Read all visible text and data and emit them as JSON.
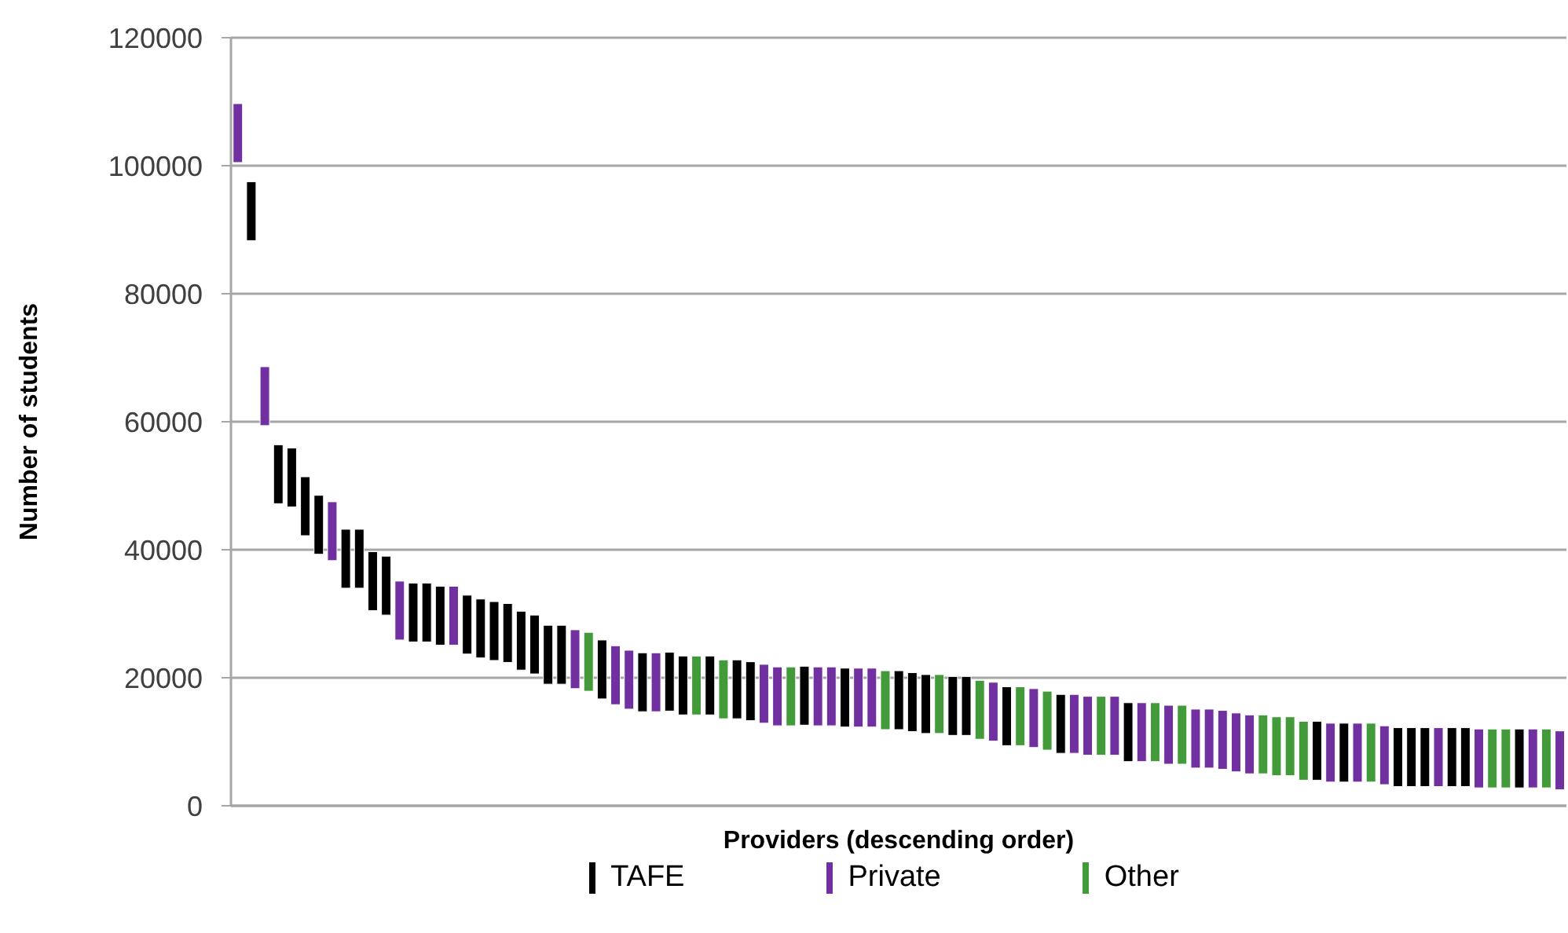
{
  "chart_data": {
    "type": "bar",
    "xlabel": "Providers (descending order)",
    "ylabel": "Number of students",
    "categories": [
      null,
      null,
      null,
      null,
      null,
      null,
      null,
      null,
      null,
      null,
      null,
      null,
      null,
      null,
      null,
      null,
      null,
      null,
      null,
      null,
      null,
      null,
      null,
      null,
      null,
      null,
      null,
      null,
      null,
      null,
      null,
      null,
      null,
      null,
      null,
      null,
      null,
      null,
      null,
      null,
      null,
      null,
      null,
      null,
      null,
      null,
      null,
      null,
      null,
      null,
      null,
      null,
      null,
      null,
      null,
      null,
      null,
      null,
      null,
      null,
      null,
      null,
      null,
      null,
      null,
      null,
      null,
      null,
      null,
      null,
      null,
      null,
      null,
      null,
      null,
      null,
      null,
      null,
      null,
      null,
      null,
      null,
      null,
      null,
      null,
      null,
      null,
      null,
      null,
      null,
      null,
      null,
      null,
      null,
      null,
      null,
      null,
      null,
      null
    ],
    "series": [
      {
        "name": "TAFE",
        "color": "#000000",
        "values": [
          null,
          9200,
          null,
          9200,
          9200,
          9200,
          9200,
          null,
          9200,
          9200,
          9200,
          9200,
          null,
          9200,
          9200,
          9200,
          null,
          9200,
          9200,
          9200,
          9200,
          9200,
          9200,
          9200,
          9200,
          null,
          null,
          9200,
          null,
          null,
          9200,
          null,
          9200,
          9200,
          null,
          9200,
          null,
          9200,
          9200,
          null,
          null,
          null,
          9200,
          null,
          null,
          9200,
          null,
          null,
          null,
          9200,
          9200,
          9200,
          null,
          9200,
          9200,
          null,
          null,
          9200,
          null,
          null,
          null,
          9200,
          null,
          null,
          null,
          null,
          9200,
          null,
          null,
          null,
          null,
          null,
          null,
          null,
          null,
          null,
          null,
          null,
          null,
          null,
          9200,
          null,
          9200,
          null,
          null,
          null,
          9200,
          9200,
          9200,
          null,
          9200,
          9200,
          null,
          null,
          null,
          9200,
          null,
          null,
          null
        ],
        "base": [
          null,
          88300,
          null,
          47200,
          46700,
          42200,
          39300,
          null,
          34000,
          34000,
          30500,
          29800,
          null,
          25600,
          25600,
          25100,
          null,
          23700,
          23100,
          22700,
          22400,
          21200,
          20600,
          19000,
          19000,
          null,
          null,
          16700,
          null,
          null,
          14700,
          null,
          14800,
          14200,
          null,
          14200,
          null,
          13600,
          13300,
          null,
          null,
          null,
          12600,
          null,
          null,
          12300,
          null,
          null,
          null,
          11900,
          11600,
          11300,
          null,
          11000,
          11000,
          null,
          null,
          9400,
          null,
          null,
          null,
          8200,
          null,
          null,
          null,
          null,
          6900,
          null,
          null,
          null,
          null,
          null,
          null,
          null,
          null,
          null,
          null,
          null,
          null,
          null,
          4000,
          null,
          3700,
          null,
          null,
          null,
          3000,
          3000,
          3000,
          null,
          3000,
          3000,
          null,
          null,
          null,
          2800,
          null,
          null,
          null
        ]
      },
      {
        "name": "Private",
        "color": "#7030a0",
        "values": [
          9200,
          null,
          9200,
          null,
          null,
          null,
          null,
          9200,
          null,
          null,
          null,
          null,
          9200,
          null,
          null,
          null,
          9200,
          null,
          null,
          null,
          null,
          null,
          null,
          null,
          null,
          9200,
          null,
          null,
          9200,
          9200,
          null,
          9200,
          null,
          null,
          null,
          null,
          null,
          null,
          null,
          9200,
          9200,
          null,
          null,
          9200,
          9200,
          null,
          9200,
          9200,
          null,
          null,
          null,
          null,
          null,
          null,
          null,
          null,
          9200,
          null,
          null,
          9200,
          null,
          null,
          9200,
          9200,
          null,
          9200,
          null,
          9200,
          null,
          9200,
          null,
          9200,
          9200,
          9200,
          9200,
          9200,
          null,
          null,
          null,
          null,
          null,
          9200,
          null,
          9200,
          null,
          9200,
          null,
          null,
          null,
          9200,
          null,
          null,
          9200,
          null,
          null,
          null,
          9200,
          null,
          9200
        ],
        "base": [
          100500,
          null,
          59400,
          null,
          null,
          null,
          null,
          38300,
          null,
          null,
          null,
          null,
          25900,
          null,
          null,
          null,
          25100,
          null,
          null,
          null,
          null,
          null,
          null,
          null,
          null,
          18300,
          null,
          null,
          15800,
          15100,
          null,
          14700,
          null,
          null,
          null,
          null,
          null,
          null,
          null,
          12900,
          12500,
          null,
          null,
          12500,
          12500,
          null,
          12300,
          12300,
          null,
          null,
          null,
          null,
          null,
          null,
          null,
          null,
          10100,
          null,
          null,
          9100,
          null,
          null,
          8200,
          7900,
          null,
          7900,
          null,
          6900,
          null,
          6500,
          null,
          5900,
          5900,
          5700,
          5300,
          5000,
          null,
          null,
          null,
          null,
          null,
          3700,
          null,
          3700,
          null,
          3300,
          null,
          null,
          null,
          3000,
          null,
          null,
          2800,
          null,
          null,
          null,
          2800,
          null,
          2500
        ]
      },
      {
        "name": "Other",
        "color": "#439a3b",
        "values": [
          null,
          null,
          null,
          null,
          null,
          null,
          null,
          null,
          null,
          null,
          null,
          null,
          null,
          null,
          null,
          null,
          null,
          null,
          null,
          null,
          null,
          null,
          null,
          null,
          null,
          null,
          9200,
          null,
          null,
          null,
          null,
          null,
          null,
          null,
          9200,
          null,
          9200,
          null,
          null,
          null,
          null,
          9200,
          null,
          null,
          null,
          null,
          null,
          null,
          9200,
          null,
          null,
          null,
          9200,
          null,
          null,
          9200,
          null,
          null,
          9200,
          null,
          9200,
          null,
          null,
          null,
          9200,
          null,
          null,
          null,
          9200,
          null,
          9200,
          null,
          null,
          null,
          null,
          null,
          9200,
          9200,
          9200,
          9200,
          null,
          null,
          null,
          null,
          9200,
          null,
          null,
          null,
          null,
          null,
          null,
          null,
          null,
          9200,
          9200,
          null,
          null,
          9200,
          null
        ],
        "base": [
          null,
          null,
          null,
          null,
          null,
          null,
          null,
          null,
          null,
          null,
          null,
          null,
          null,
          null,
          null,
          null,
          null,
          null,
          null,
          null,
          null,
          null,
          null,
          null,
          null,
          null,
          17900,
          null,
          null,
          null,
          null,
          null,
          null,
          null,
          14200,
          null,
          13600,
          null,
          null,
          null,
          null,
          12500,
          null,
          null,
          null,
          null,
          null,
          null,
          11900,
          null,
          null,
          null,
          11300,
          null,
          null,
          10400,
          null,
          null,
          9400,
          null,
          8700,
          null,
          null,
          null,
          7900,
          null,
          null,
          null,
          6900,
          null,
          6500,
          null,
          null,
          null,
          null,
          null,
          5000,
          4700,
          4700,
          4000,
          null,
          null,
          null,
          null,
          3700,
          null,
          null,
          null,
          null,
          null,
          null,
          null,
          null,
          2800,
          2800,
          null,
          null,
          2800,
          null
        ]
      }
    ],
    "stacked": true,
    "ylim": [
      0,
      120000
    ],
    "yticks": [
      0,
      20000,
      40000,
      60000,
      80000,
      100000,
      120000
    ],
    "grid": "y",
    "legend": "bottom",
    "tick_labels": "y"
  }
}
